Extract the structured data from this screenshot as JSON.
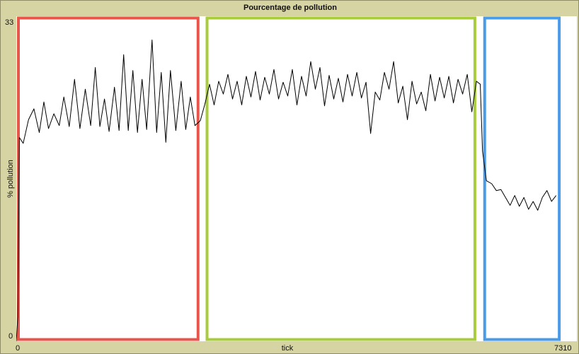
{
  "chart_data": {
    "type": "line",
    "title": "Pourcentage de pollution",
    "xlabel": "tick",
    "ylabel": "% pollution",
    "xlim": [
      0,
      7310
    ],
    "ylim": [
      0,
      33
    ],
    "x_tick_labels": [
      "0",
      "7310"
    ],
    "y_tick_labels": [
      "0",
      "33"
    ],
    "grid": false,
    "legend": "none",
    "line_color": "#000000",
    "regions": [
      {
        "x_start": 0,
        "x_end": 2370,
        "color": "#e8554a"
      },
      {
        "x_start": 2460,
        "x_end": 5980,
        "color": "#a8cc3a"
      },
      {
        "x_start": 6080,
        "x_end": 7080,
        "color": "#4a9be8"
      }
    ],
    "series": [
      {
        "values": [
          [
            0,
            0
          ],
          [
            20,
            2.5
          ],
          [
            40,
            20.7
          ],
          [
            90,
            20.1
          ],
          [
            160,
            22.5
          ],
          [
            230,
            23.6
          ],
          [
            300,
            21.2
          ],
          [
            360,
            24.3
          ],
          [
            420,
            21.6
          ],
          [
            490,
            23.1
          ],
          [
            560,
            21.9
          ],
          [
            620,
            24.8
          ],
          [
            690,
            21.8
          ],
          [
            760,
            26.6
          ],
          [
            830,
            21.6
          ],
          [
            900,
            25.6
          ],
          [
            970,
            21.9
          ],
          [
            1030,
            27.8
          ],
          [
            1090,
            21.8
          ],
          [
            1150,
            24.6
          ],
          [
            1210,
            21.3
          ],
          [
            1280,
            25.8
          ],
          [
            1340,
            21.4
          ],
          [
            1400,
            29.1
          ],
          [
            1460,
            21.4
          ],
          [
            1520,
            27.5
          ],
          [
            1580,
            21.2
          ],
          [
            1640,
            26.6
          ],
          [
            1700,
            21.5
          ],
          [
            1770,
            30.6
          ],
          [
            1830,
            21.2
          ],
          [
            1890,
            27.3
          ],
          [
            1950,
            20.2
          ],
          [
            2010,
            27.5
          ],
          [
            2080,
            21.4
          ],
          [
            2150,
            26.4
          ],
          [
            2210,
            21.5
          ],
          [
            2270,
            24.8
          ],
          [
            2330,
            21.9
          ],
          [
            2400,
            22.4
          ],
          [
            2460,
            24.1
          ],
          [
            2520,
            26.1
          ],
          [
            2580,
            24.0
          ],
          [
            2640,
            26.4
          ],
          [
            2700,
            25.1
          ],
          [
            2760,
            27.1
          ],
          [
            2820,
            24.6
          ],
          [
            2880,
            26.4
          ],
          [
            2940,
            24.0
          ],
          [
            3000,
            26.9
          ],
          [
            3060,
            24.8
          ],
          [
            3120,
            27.4
          ],
          [
            3180,
            24.5
          ],
          [
            3240,
            26.8
          ],
          [
            3300,
            25.1
          ],
          [
            3360,
            27.6
          ],
          [
            3420,
            24.6
          ],
          [
            3480,
            26.3
          ],
          [
            3540,
            24.9
          ],
          [
            3600,
            27.6
          ],
          [
            3660,
            24.0
          ],
          [
            3720,
            26.9
          ],
          [
            3780,
            24.9
          ],
          [
            3840,
            28.4
          ],
          [
            3900,
            25.6
          ],
          [
            3960,
            27.8
          ],
          [
            4020,
            23.9
          ],
          [
            4080,
            27.0
          ],
          [
            4140,
            24.6
          ],
          [
            4200,
            26.7
          ],
          [
            4260,
            24.3
          ],
          [
            4320,
            27.1
          ],
          [
            4380,
            24.9
          ],
          [
            4440,
            27.3
          ],
          [
            4500,
            24.7
          ],
          [
            4560,
            26.3
          ],
          [
            4620,
            21.1
          ],
          [
            4680,
            25.3
          ],
          [
            4740,
            24.5
          ],
          [
            4800,
            27.3
          ],
          [
            4860,
            25.6
          ],
          [
            4920,
            28.4
          ],
          [
            4980,
            24.2
          ],
          [
            5040,
            25.9
          ],
          [
            5100,
            22.5
          ],
          [
            5160,
            26.4
          ],
          [
            5220,
            24.1
          ],
          [
            5280,
            25.3
          ],
          [
            5340,
            23.4
          ],
          [
            5400,
            27.1
          ],
          [
            5460,
            24.4
          ],
          [
            5520,
            26.8
          ],
          [
            5580,
            24.7
          ],
          [
            5640,
            26.9
          ],
          [
            5700,
            24.2
          ],
          [
            5760,
            26.6
          ],
          [
            5820,
            25.1
          ],
          [
            5880,
            27.1
          ],
          [
            5940,
            23.3
          ],
          [
            6000,
            26.4
          ],
          [
            6050,
            26.1
          ],
          [
            6080,
            19.3
          ],
          [
            6130,
            16.3
          ],
          [
            6200,
            16.0
          ],
          [
            6260,
            15.3
          ],
          [
            6320,
            15.4
          ],
          [
            6380,
            14.6
          ],
          [
            6440,
            13.8
          ],
          [
            6500,
            14.8
          ],
          [
            6560,
            13.7
          ],
          [
            6620,
            14.6
          ],
          [
            6680,
            13.4
          ],
          [
            6740,
            14.2
          ],
          [
            6800,
            13.3
          ],
          [
            6860,
            14.6
          ],
          [
            6920,
            15.3
          ],
          [
            6980,
            14.2
          ],
          [
            7040,
            14.8
          ]
        ]
      }
    ]
  }
}
